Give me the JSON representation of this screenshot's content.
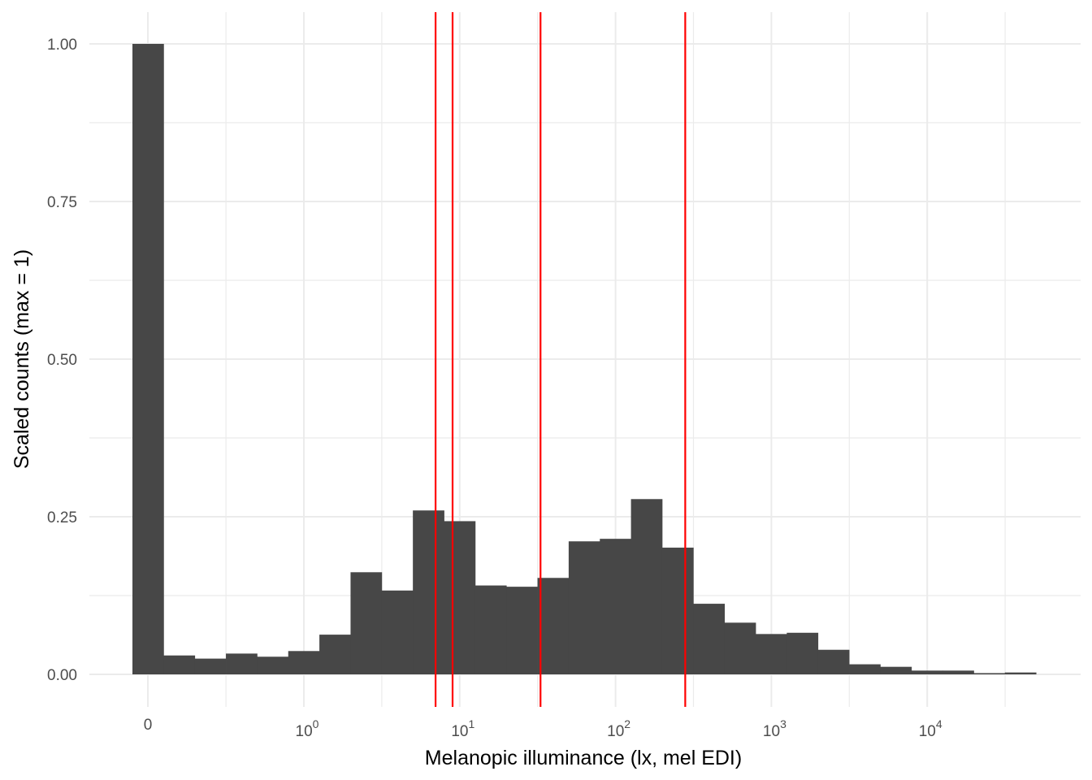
{
  "chart_data": {
    "type": "bar",
    "xlabel": "Melanopic illuminance (lx, mel EDI)",
    "ylabel": "Scaled counts (max = 1)",
    "x_scale": "symlog",
    "ylim": [
      -0.045,
      1.05
    ],
    "grid": true,
    "y_ticks": [
      {
        "value": 0.0,
        "label": "0.00"
      },
      {
        "value": 0.25,
        "label": "0.25"
      },
      {
        "value": 0.5,
        "label": "0.50"
      },
      {
        "value": 0.75,
        "label": "0.75"
      },
      {
        "value": 1.0,
        "label": "1.00"
      }
    ],
    "x_ticks": [
      {
        "value": 0,
        "base": "0",
        "exp": ""
      },
      {
        "value": 1,
        "base": "10",
        "exp": "0"
      },
      {
        "value": 10,
        "base": "10",
        "exp": "1"
      },
      {
        "value": 100,
        "base": "10",
        "exp": "2"
      },
      {
        "value": 1000,
        "base": "10",
        "exp": "3"
      },
      {
        "value": 10000,
        "base": "10",
        "exp": "4"
      }
    ],
    "bins": [
      {
        "x": 0,
        "value": 1.0
      },
      {
        "x": 0.13,
        "value": 0.03
      },
      {
        "x": 0.24,
        "value": 0.025
      },
      {
        "x": 0.42,
        "value": 0.033
      },
      {
        "x": 0.72,
        "value": 0.028
      },
      {
        "x": 1.2,
        "value": 0.037
      },
      {
        "x": 1.95,
        "value": 0.063
      },
      {
        "x": 3.2,
        "value": 0.162
      },
      {
        "x": 5.1,
        "value": 0.133
      },
      {
        "x": 8.1,
        "value": 0.26
      },
      {
        "x": 12.9,
        "value": 0.243
      },
      {
        "x": 20.5,
        "value": 0.141
      },
      {
        "x": 32.5,
        "value": 0.139
      },
      {
        "x": 51.5,
        "value": 0.153
      },
      {
        "x": 82,
        "value": 0.211
      },
      {
        "x": 130,
        "value": 0.215
      },
      {
        "x": 206,
        "value": 0.278
      },
      {
        "x": 327,
        "value": 0.201
      },
      {
        "x": 519,
        "value": 0.112
      },
      {
        "x": 823,
        "value": 0.082
      },
      {
        "x": 1300,
        "value": 0.064
      },
      {
        "x": 2070,
        "value": 0.066
      },
      {
        "x": 3290,
        "value": 0.039
      },
      {
        "x": 5210,
        "value": 0.016
      },
      {
        "x": 8270,
        "value": 0.012
      },
      {
        "x": 13100,
        "value": 0.006
      },
      {
        "x": 20800,
        "value": 0.006
      },
      {
        "x": 33000,
        "value": 0.002
      },
      {
        "x": 52300,
        "value": 0.003
      }
    ],
    "reference_lines": [
      7,
      9,
      33,
      280
    ],
    "colors": {
      "bar": "#474747",
      "reference_line": "#ff0000",
      "grid": "#ebebeb",
      "tick_text": "#4d4d4d"
    }
  }
}
